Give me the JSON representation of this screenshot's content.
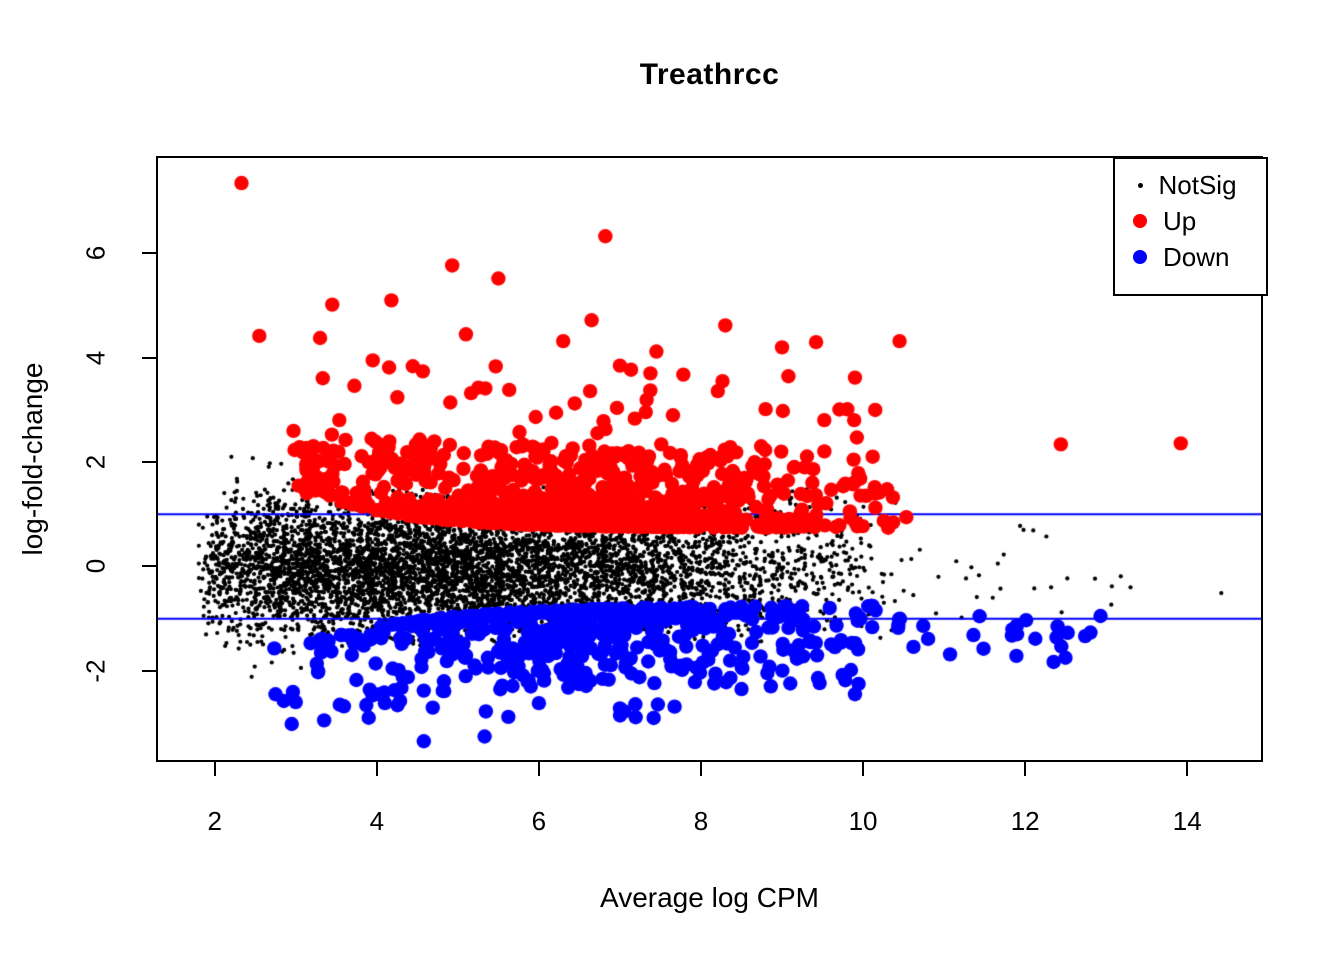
{
  "page": {
    "background": "#ffffff"
  },
  "chart_data": {
    "type": "scatter",
    "title": "Treathrcc",
    "xlabel": "Average log CPM",
    "ylabel": "log-fold-change",
    "xlim": [
      1.3,
      14.91
    ],
    "ylim": [
      -3.71,
      7.83
    ],
    "xticks": [
      2,
      4,
      6,
      8,
      10,
      12,
      14
    ],
    "yticks": [
      -2,
      0,
      2,
      4,
      6
    ],
    "grid": false,
    "hlines": {
      "values": [
        1,
        -1
      ],
      "color": "#0000ff",
      "width": 2
    },
    "legend": {
      "position": "top-right",
      "border": true,
      "entries": [
        {
          "label": "NotSig",
          "color": "#000000",
          "marker_radius": 2.5
        },
        {
          "label": "Up",
          "color": "#ff0000",
          "marker_radius": 7
        },
        {
          "label": "Down",
          "color": "#0000ff",
          "marker_radius": 7
        }
      ]
    },
    "seed": 20240613,
    "series": [
      {
        "name": "NotSig",
        "color": "#000000",
        "marker_radius": 2.1,
        "blobs": [
          {
            "kind": "cloud",
            "n": 6000,
            "x": {
              "min": 1.8,
              "span": 8.8,
              "pow": 1.4
            },
            "y": {
              "half": 1.55
            }
          },
          {
            "kind": "cloud",
            "n": 180,
            "x": {
              "min": 1.85,
              "span": 2.4,
              "pow": 1.3
            },
            "y": {
              "half": 2.35
            }
          },
          {
            "kind": "uni",
            "n": 14,
            "x": {
              "min": 10.5,
              "span": 2.6,
              "pow": 1.0
            },
            "y": {
              "min": -1.0,
              "spread": 1.8,
              "pow": 1.0
            }
          },
          {
            "kind": "points",
            "points": [
              [
                11.98,
                0.7
              ],
              [
                12.1,
                0.69
              ],
              [
                11.27,
                -0.23
              ],
              [
                11.43,
                -0.17
              ],
              [
                12.32,
                -0.4
              ],
              [
                12.52,
                -0.23
              ],
              [
                13.07,
                -0.38
              ],
              [
                13.18,
                -0.19
              ],
              [
                13.3,
                -0.4
              ],
              [
                14.42,
                -0.51
              ],
              [
                10.9,
                -0.9
              ],
              [
                11.15,
                0.1
              ],
              [
                10.7,
                0.32
              ],
              [
                10.62,
                -0.55
              ],
              [
                12.45,
                -0.88
              ],
              [
                11.6,
                -0.6
              ]
            ]
          }
        ]
      },
      {
        "name": "Up",
        "color": "#ff0000",
        "marker_radius": 7.2,
        "blobs": [
          {
            "kind": "band",
            "n": 780,
            "x": {
              "min": 2.85,
              "span": 7.9,
              "pow": 1.15
            },
            "base": {
              "a": 0.92,
              "b": 0.95,
              "decay": 1.1
            },
            "y": {
              "off": -0.18,
              "spread": 1.5,
              "pow": 2.6
            }
          },
          {
            "kind": "uni",
            "n": 115,
            "x": {
              "min": 3.0,
              "span": 7.3,
              "pow": 1.0
            },
            "y": {
              "min": 1.35,
              "spread": 2.55,
              "pow": 2.0
            }
          },
          {
            "kind": "points",
            "points": [
              [
                2.33,
                7.35
              ],
              [
                6.82,
                6.33
              ],
              [
                4.93,
                5.77
              ],
              [
                5.5,
                5.52
              ],
              [
                3.45,
                5.02
              ],
              [
                4.18,
                5.1
              ],
              [
                2.55,
                4.42
              ],
              [
                3.3,
                4.38
              ],
              [
                5.1,
                4.45
              ],
              [
                6.3,
                4.32
              ],
              [
                6.65,
                4.72
              ],
              [
                7.45,
                4.12
              ],
              [
                8.3,
                4.62
              ],
              [
                9.0,
                4.2
              ],
              [
                9.42,
                4.3
              ],
              [
                10.45,
                4.32
              ],
              [
                3.95,
                3.95
              ],
              [
                7.0,
                3.85
              ],
              [
                9.9,
                3.62
              ],
              [
                10.15,
                3.0
              ],
              [
                12.44,
                2.34
              ],
              [
                13.92,
                2.36
              ]
            ]
          }
        ]
      },
      {
        "name": "Down",
        "color": "#0000ff",
        "marker_radius": 7.2,
        "blobs": [
          {
            "kind": "band",
            "n": 460,
            "x": {
              "min": 2.9,
              "span": 7.6,
              "pow": 1.1
            },
            "base": {
              "a": -0.92,
              "b": -0.85,
              "decay": 1.5
            },
            "y": {
              "off": 0.17,
              "spread": -1.5,
              "pow": 2.6
            }
          },
          {
            "kind": "uni",
            "n": 55,
            "x": {
              "min": 2.7,
              "span": 7.4,
              "pow": 1.05
            },
            "y": {
              "min": -1.45,
              "spread": -1.5,
              "pow": 1.9
            }
          },
          {
            "kind": "uni",
            "n": 24,
            "x": {
              "min": 10.4,
              "span": 2.45,
              "pow": 1.2
            },
            "y": {
              "min": -0.95,
              "spread": -0.9,
              "pow": 1.7
            }
          },
          {
            "kind": "points",
            "points": [
              [
                4.58,
                -3.35
              ],
              [
                5.33,
                -3.26
              ],
              [
                2.95,
                -3.02
              ],
              [
                3.35,
                -2.95
              ],
              [
                3.9,
                -2.9
              ],
              [
                2.75,
                -2.45
              ],
              [
                3.0,
                -2.6
              ],
              [
                4.1,
                -2.62
              ],
              [
                5.9,
                -2.3
              ],
              [
                6.0,
                -2.62
              ],
              [
                7.0,
                -2.72
              ],
              [
                8.5,
                -2.35
              ],
              [
                9.9,
                -2.45
              ],
              [
                11.9,
                -1.3
              ],
              [
                12.4,
                -1.15
              ],
              [
                12.93,
                -0.95
              ]
            ]
          }
        ]
      }
    ]
  }
}
